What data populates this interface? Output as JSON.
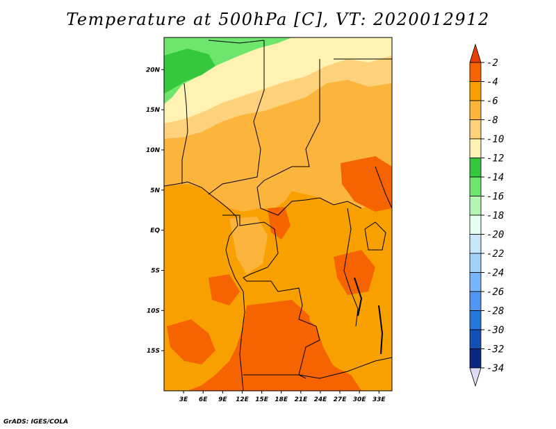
{
  "title": "Temperature at 500hPa [C], VT: 2020012912",
  "credit": "GrADS: IGES/COLA",
  "map": {
    "lon_range": [
      0,
      35
    ],
    "lat_range": [
      -20,
      24
    ],
    "lat_ticks": [
      {
        "value": 20,
        "label": "20N"
      },
      {
        "value": 15,
        "label": "15N"
      },
      {
        "value": 10,
        "label": "10N"
      },
      {
        "value": 5,
        "label": "5N"
      },
      {
        "value": 0,
        "label": "EQ"
      },
      {
        "value": -5,
        "label": "5S"
      },
      {
        "value": -10,
        "label": "10S"
      },
      {
        "value": -15,
        "label": "15S"
      }
    ],
    "lon_ticks": [
      {
        "value": 3,
        "label": "3E"
      },
      {
        "value": 6,
        "label": "6E"
      },
      {
        "value": 9,
        "label": "9E"
      },
      {
        "value": 12,
        "label": "12E"
      },
      {
        "value": 15,
        "label": "15E"
      },
      {
        "value": 18,
        "label": "18E"
      },
      {
        "value": 21,
        "label": "21E"
      },
      {
        "value": 24,
        "label": "24E"
      },
      {
        "value": 27,
        "label": "27E"
      },
      {
        "value": 30,
        "label": "30E"
      },
      {
        "value": 33,
        "label": "33E"
      }
    ]
  },
  "colorbar": {
    "bins": [
      {
        "color": "#e64000",
        "range": [
          -2,
          0
        ]
      },
      {
        "color": "#f56400",
        "range": [
          -4,
          -2
        ]
      },
      {
        "color": "#f7a000",
        "range": [
          -6,
          -4
        ]
      },
      {
        "color": "#fbb43c",
        "range": [
          -8,
          -6
        ]
      },
      {
        "color": "#fdd27a",
        "range": [
          -10,
          -8
        ]
      },
      {
        "color": "#fff3b4",
        "range": [
          -12,
          -10
        ]
      },
      {
        "color": "#36c83c",
        "range": [
          -14,
          -12
        ]
      },
      {
        "color": "#6ee66e",
        "range": [
          -16,
          -14
        ]
      },
      {
        "color": "#b4f5b4",
        "range": [
          -18,
          -16
        ]
      },
      {
        "color": "#e6fff0",
        "range": [
          -20,
          -18
        ]
      },
      {
        "color": "#c8e6fa",
        "range": [
          -22,
          -20
        ]
      },
      {
        "color": "#a0d2fa",
        "range": [
          -24,
          -22
        ]
      },
      {
        "color": "#78b4fa",
        "range": [
          -26,
          -24
        ]
      },
      {
        "color": "#5096f0",
        "range": [
          -28,
          -26
        ]
      },
      {
        "color": "#2878dc",
        "range": [
          -30,
          -28
        ]
      },
      {
        "color": "#1450b4",
        "range": [
          -32,
          -30
        ]
      },
      {
        "color": "#0a2882",
        "range": [
          -34,
          -32
        ]
      },
      {
        "color": "#dcdcf5",
        "range": [
          -36,
          -34
        ]
      }
    ],
    "labels": [
      "-2",
      "-4",
      "-6",
      "-8",
      "-10",
      "-12",
      "-14",
      "-16",
      "-18",
      "-20",
      "-22",
      "-24",
      "-26",
      "-28",
      "-30",
      "-32",
      "-34"
    ]
  }
}
